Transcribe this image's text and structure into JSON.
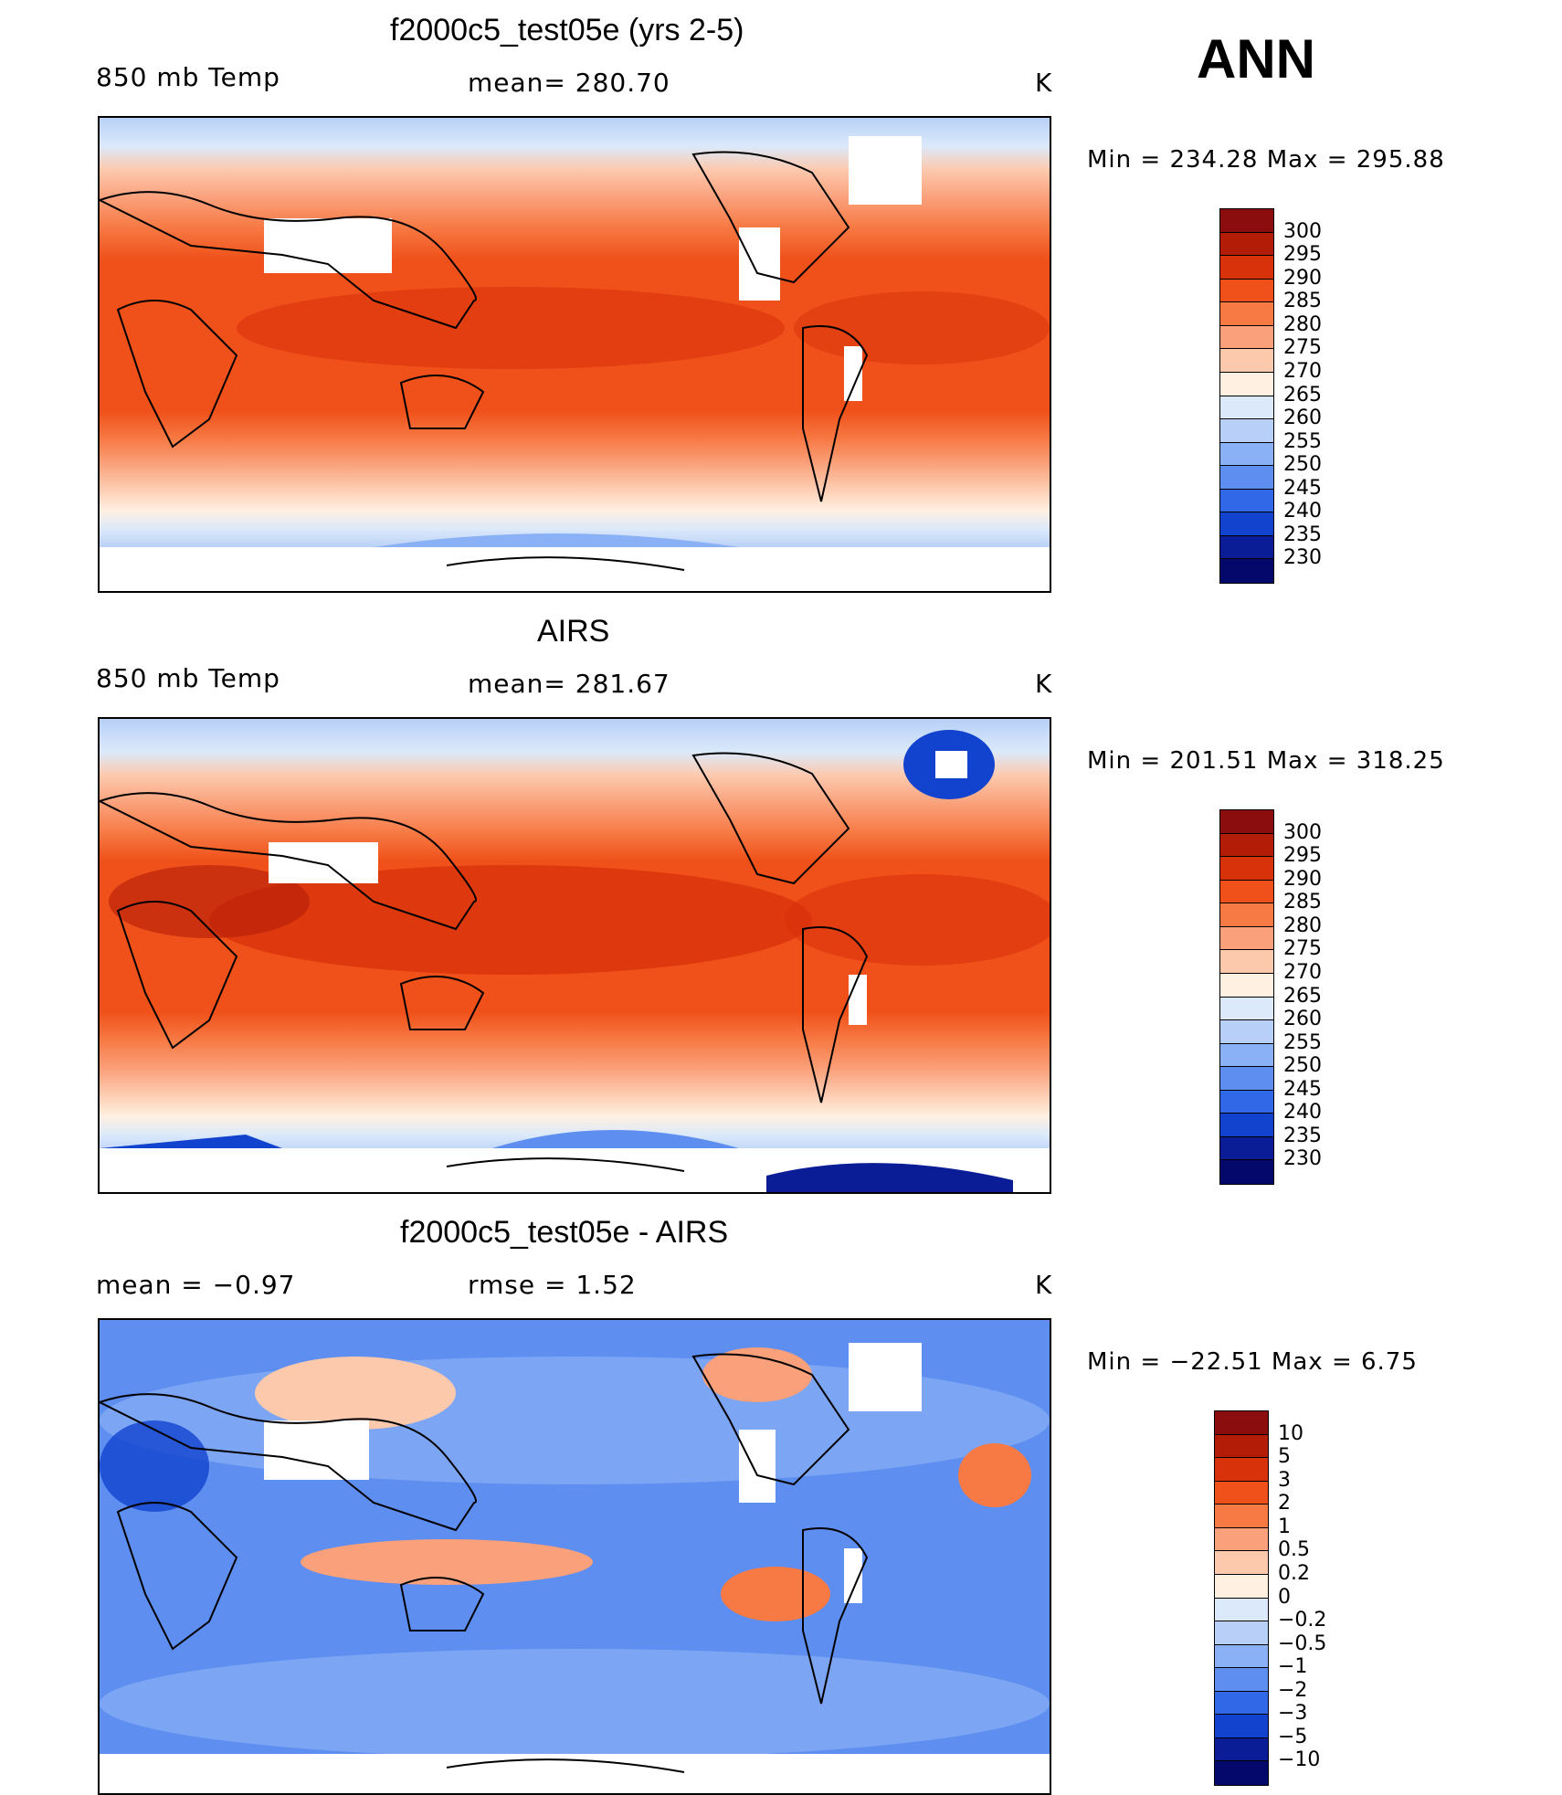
{
  "season": "ANN",
  "panels": [
    {
      "id": "model",
      "title": "f2000c5_test05e (yrs 2-5)",
      "left_label": "850 mb Temp",
      "center_label": "mean=  280.70",
      "right_label": "K",
      "minmax": "Min  =  234.28  Max  =  295.88",
      "colorbar": {
        "labels": [
          "300",
          "295",
          "290",
          "285",
          "280",
          "275",
          "270",
          "265",
          "260",
          "255",
          "250",
          "245",
          "240",
          "235",
          "230"
        ],
        "colors": [
          "#8b0d0d",
          "#b31c07",
          "#d8320b",
          "#f0511a",
          "#f77a45",
          "#faa07a",
          "#fdc9ad",
          "#fff0e2",
          "#dbe9fa",
          "#b8d0f8",
          "#8ab1f5",
          "#5d8ef0",
          "#3168e8",
          "#1243cf",
          "#0a1d96",
          "#04086b"
        ]
      }
    },
    {
      "id": "obs",
      "title": "AIRS",
      "left_label": "850 mb Temp",
      "center_label": "mean=  281.67",
      "right_label": "K",
      "minmax": "Min  =  201.51  Max  =  318.25",
      "colorbar": {
        "labels": [
          "300",
          "295",
          "290",
          "285",
          "280",
          "275",
          "270",
          "265",
          "260",
          "255",
          "250",
          "245",
          "240",
          "235",
          "230"
        ],
        "colors": [
          "#8b0d0d",
          "#b31c07",
          "#d8320b",
          "#f0511a",
          "#f77a45",
          "#faa07a",
          "#fdc9ad",
          "#fff0e2",
          "#dbe9fa",
          "#b8d0f8",
          "#8ab1f5",
          "#5d8ef0",
          "#3168e8",
          "#1243cf",
          "#0a1d96",
          "#04086b"
        ]
      }
    },
    {
      "id": "diff",
      "title": "f2000c5_test05e - AIRS",
      "left_label": "mean =    −0.97",
      "center_label": "rmse =     1.52",
      "right_label": "K",
      "minmax": "Min  =  −22.51  Max  =      6.75",
      "colorbar": {
        "labels": [
          "10",
          "5",
          "3",
          "2",
          "1",
          "0.5",
          "0.2",
          "0",
          "−0.2",
          "−0.5",
          "−1",
          "−2",
          "−3",
          "−5",
          "−10"
        ],
        "colors": [
          "#8b0d0d",
          "#b31c07",
          "#d8320b",
          "#f0511a",
          "#f77a45",
          "#faa07a",
          "#fdc9ad",
          "#fff0e2",
          "#dbe9fa",
          "#b8d0f8",
          "#8ab1f5",
          "#5d8ef0",
          "#3168e8",
          "#1243cf",
          "#0a1d96",
          "#04086b"
        ]
      }
    }
  ]
}
